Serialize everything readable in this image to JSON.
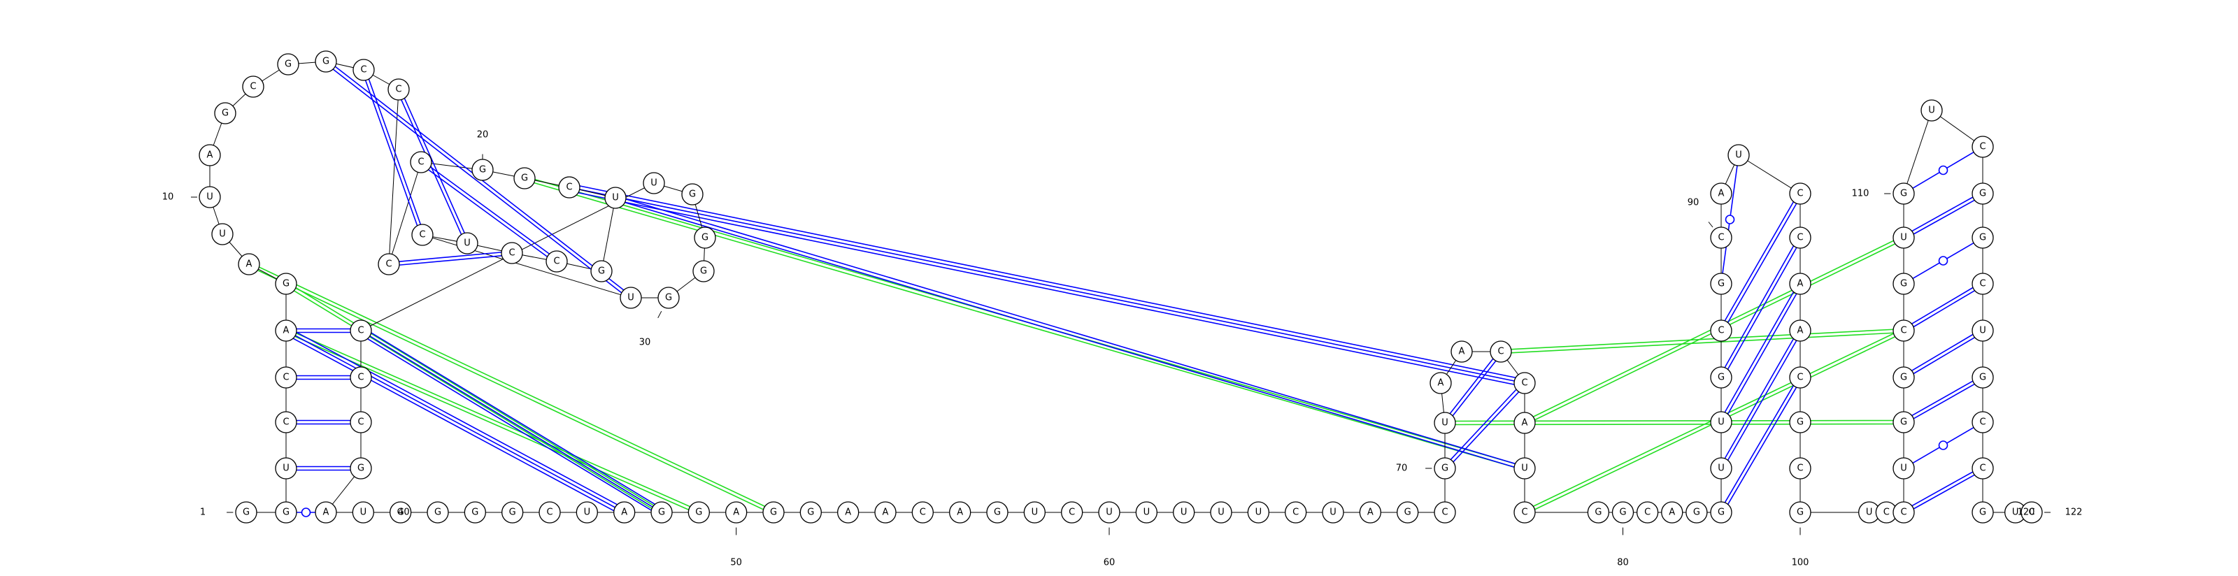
{
  "sequence": "GGUCCAGAUUAGCGGCCCCGGCUGCCUCUGGGGUCCCGAUGGGGCUAGGAGGAACAGUCUUUUUCUAGCGUAACCAUCGGCAGGUUGCGCAUCCAACGCGUCCUGGCGUGUCGGCUGCCGUC",
  "sequence_length": 122,
  "numbering": [
    {
      "index": 1,
      "label": "1"
    },
    {
      "index": 10,
      "label": "10"
    },
    {
      "index": 20,
      "label": "20"
    },
    {
      "index": 30,
      "label": "30"
    },
    {
      "index": 40,
      "label": "40"
    },
    {
      "index": 50,
      "label": "50"
    },
    {
      "index": 60,
      "label": "60"
    },
    {
      "index": 70,
      "label": "70"
    },
    {
      "index": 80,
      "label": "80"
    },
    {
      "index": 90,
      "label": "90"
    },
    {
      "index": 100,
      "label": "100"
    },
    {
      "index": 110,
      "label": "110"
    },
    {
      "index": 120,
      "label": "120"
    },
    {
      "index": 122,
      "label": "122"
    }
  ],
  "base_pairs": [
    {
      "i": 2,
      "j": 39,
      "type": "wobble"
    },
    {
      "i": 3,
      "j": 38,
      "type": "canonical"
    },
    {
      "i": 4,
      "j": 37,
      "type": "canonical"
    },
    {
      "i": 5,
      "j": 36,
      "type": "canonical"
    },
    {
      "i": 6,
      "j": 35,
      "type": "canonical"
    },
    {
      "i": 15,
      "j": 29,
      "type": "canonical"
    },
    {
      "i": 16,
      "j": 28,
      "type": "canonical"
    },
    {
      "i": 17,
      "j": 27,
      "type": "canonical"
    },
    {
      "i": 18,
      "j": 26,
      "type": "canonical"
    },
    {
      "i": 19,
      "j": 25,
      "type": "canonical"
    },
    {
      "i": 70,
      "j": 75,
      "type": "canonical"
    },
    {
      "i": 71,
      "j": 74,
      "type": "canonical"
    },
    {
      "i": 84,
      "j": 97,
      "type": "canonical"
    },
    {
      "i": 85,
      "j": 96,
      "type": "canonical"
    },
    {
      "i": 86,
      "j": 95,
      "type": "canonical"
    },
    {
      "i": 87,
      "j": 94,
      "type": "canonical"
    },
    {
      "i": 88,
      "j": 93,
      "type": "canonical"
    },
    {
      "i": 89,
      "j": 92,
      "type": "wobble"
    },
    {
      "i": 103,
      "j": 119,
      "type": "canonical"
    },
    {
      "i": 104,
      "j": 118,
      "type": "wobble"
    },
    {
      "i": 105,
      "j": 117,
      "type": "canonical"
    },
    {
      "i": 106,
      "j": 116,
      "type": "canonical"
    },
    {
      "i": 107,
      "j": 115,
      "type": "canonical"
    },
    {
      "i": 108,
      "j": 114,
      "type": "wobble"
    },
    {
      "i": 109,
      "j": 113,
      "type": "canonical"
    },
    {
      "i": 110,
      "j": 112,
      "type": "wobble"
    }
  ],
  "tertiary_blue": [
    {
      "i": 6,
      "j": 47,
      "lines": 3
    },
    {
      "i": 35,
      "j": 48,
      "lines": 3
    },
    {
      "i": 22,
      "j": 75,
      "lines": 3
    },
    {
      "i": 23,
      "j": 77,
      "lines": 2
    }
  ],
  "tertiary_green": [
    {
      "i": 6,
      "j": 49,
      "lines": 2
    },
    {
      "i": 7,
      "j": 48,
      "lines": 2
    },
    {
      "i": 8,
      "j": 51,
      "lines": 2
    },
    {
      "i": 21,
      "j": 77,
      "lines": 2
    },
    {
      "i": 71,
      "j": 105,
      "lines": 2
    },
    {
      "i": 74,
      "j": 107,
      "lines": 2
    },
    {
      "i": 76,
      "j": 109,
      "lines": 2
    },
    {
      "i": 78,
      "j": 107,
      "lines": 2
    }
  ],
  "colors": {
    "canonical_pair": "#0000ff",
    "tertiary_blue": "#0000ff",
    "tertiary_green": "#22dd22",
    "backbone": "#000000",
    "nucleotide_outline": "#000000"
  }
}
